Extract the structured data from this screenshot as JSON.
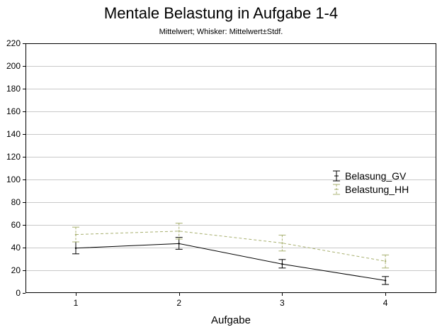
{
  "chart_data": {
    "type": "line",
    "title": "Mentale Belastung in Aufgabe 1-4",
    "subtitle": "Mittelwert; Whisker: Mittelwert±Stdf.",
    "xlabel": "Aufgabe",
    "ylabel": "",
    "x": [
      "1",
      "2",
      "3",
      "4"
    ],
    "ylim": [
      0,
      220
    ],
    "yticks": [
      0,
      20,
      40,
      60,
      80,
      100,
      120,
      140,
      160,
      180,
      200,
      220
    ],
    "grid": true,
    "legend_position": "right",
    "series": [
      {
        "name": "Belasung_GV",
        "values": [
          39.5,
          43.5,
          25.5,
          11
        ],
        "lower": [
          34.5,
          38.5,
          22,
          7.5
        ],
        "upper": [
          45,
          49,
          29.5,
          14.5
        ],
        "color": "#000000",
        "dashed": false
      },
      {
        "name": "Belastung_HH",
        "values": [
          51.5,
          54.5,
          44,
          28
        ],
        "lower": [
          45,
          47.5,
          37,
          22
        ],
        "upper": [
          58,
          61.5,
          51,
          33.5
        ],
        "color": "#a8b070",
        "dashed": true
      }
    ]
  }
}
